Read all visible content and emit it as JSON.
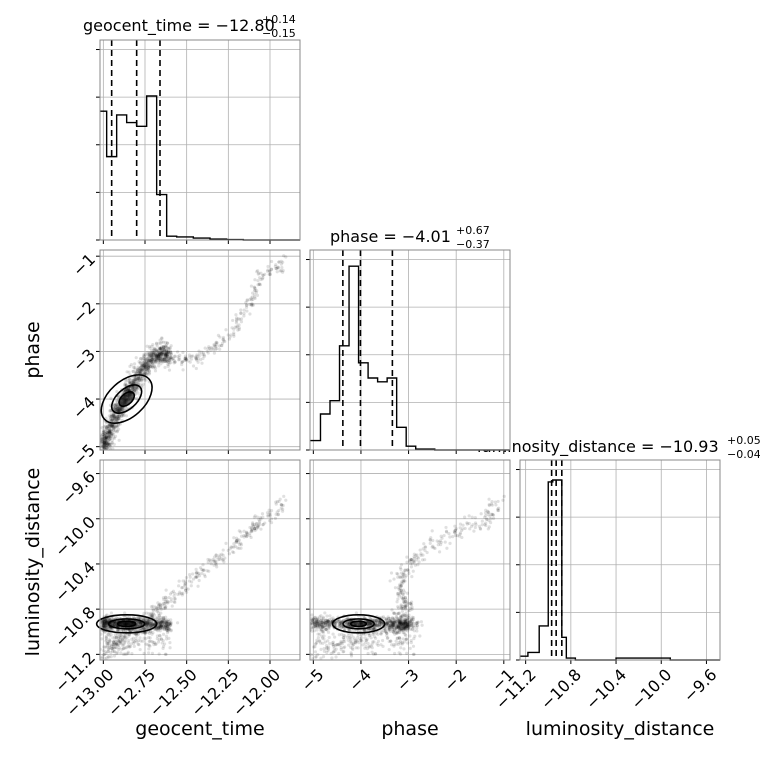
{
  "chart_data": {
    "type": "corner",
    "parameters": [
      "geocent_time",
      "phase",
      "luminosity_distance"
    ],
    "axis_labels": {
      "geocent_time": "geocent_time",
      "phase": "phase",
      "luminosity_distance": "luminosity_distance"
    },
    "ranges": {
      "geocent_time": [
        -13.02,
        -11.82
      ],
      "phase": [
        -5.07,
        -0.87
      ],
      "luminosity_distance": [
        -11.25,
        -9.48
      ]
    },
    "ticks": {
      "geocent_time": {
        "values": [
          -13.0,
          -12.75,
          -12.5,
          -12.25,
          -12.0
        ],
        "labels": [
          "−13.00",
          "−12.75",
          "−12.50",
          "−12.25",
          "−12.00"
        ]
      },
      "phase": {
        "values": [
          -5,
          -4,
          -3,
          -2,
          -1
        ],
        "labels": [
          "−5",
          "−4",
          "−3",
          "−2",
          "−1"
        ]
      },
      "luminosity_distance": {
        "values": [
          -11.2,
          -10.8,
          -10.4,
          -10.0,
          -9.6
        ],
        "labels": [
          "−11.2",
          "−10.8",
          "−10.4",
          "−10.0",
          "−9.6"
        ]
      }
    },
    "titles": [
      {
        "param": "geocent_time",
        "label": "geocent_time = −12.80",
        "upper": "+0.14",
        "lower": "−0.15"
      },
      {
        "param": "phase",
        "label": "phase = −4.01",
        "upper": "+0.67",
        "lower": "−0.37"
      },
      {
        "param": "luminosity_distance",
        "label": "luminosity_distance = −10.93",
        "upper": "+0.05",
        "lower": "−0.04"
      }
    ],
    "quantiles": {
      "geocent_time": [
        -12.95,
        -12.8,
        -12.66
      ],
      "phase": [
        -4.38,
        -4.01,
        -3.34
      ],
      "luminosity_distance": [
        -10.97,
        -10.93,
        -10.88
      ]
    },
    "histograms": {
      "geocent_time": {
        "edges": [
          -13.02,
          -12.98,
          -12.92,
          -12.86,
          -12.8,
          -12.74,
          -12.68,
          -12.62,
          -12.56,
          -12.46,
          -12.36,
          -12.26,
          -12.16,
          -11.82
        ],
        "counts": [
          0.68,
          0.44,
          0.66,
          0.62,
          0.6,
          0.76,
          0.24,
          0.02,
          0.016,
          0.01,
          0.005,
          0.002,
          0.0
        ]
      },
      "phase": {
        "edges": [
          -5.07,
          -4.85,
          -4.65,
          -4.45,
          -4.25,
          -4.05,
          -3.85,
          -3.65,
          -3.45,
          -3.25,
          -3.05,
          -2.85,
          -2.45,
          -0.87
        ],
        "counts": [
          0.05,
          0.19,
          0.26,
          0.55,
          0.97,
          0.46,
          0.38,
          0.36,
          0.38,
          0.12,
          0.02,
          0.005,
          0.0
        ]
      },
      "luminosity_distance": {
        "edges": [
          -11.25,
          -11.18,
          -11.08,
          -11.0,
          -10.96,
          -10.92,
          -10.88,
          -10.84,
          -10.76,
          -10.4,
          -9.92,
          -9.48
        ],
        "counts": [
          0.02,
          0.04,
          0.18,
          0.94,
          0.95,
          0.95,
          0.12,
          0.01,
          0.0,
          0.01,
          0.0
        ]
      }
    },
    "scatter_trend": {
      "description_points": [
        [
          -13.0,
          -5.0
        ],
        [
          -12.92,
          -4.3
        ],
        [
          -12.84,
          -3.8
        ],
        [
          -12.75,
          -3.3
        ],
        [
          -12.65,
          -3.0
        ],
        [
          -12.55,
          -3.2
        ],
        [
          -12.4,
          -3.1
        ],
        [
          -12.25,
          -2.7
        ],
        [
          -12.12,
          -2.0
        ],
        [
          -12.05,
          -1.4
        ],
        [
          -11.9,
          -1.1
        ]
      ]
    },
    "grid": true,
    "legend": "none"
  }
}
